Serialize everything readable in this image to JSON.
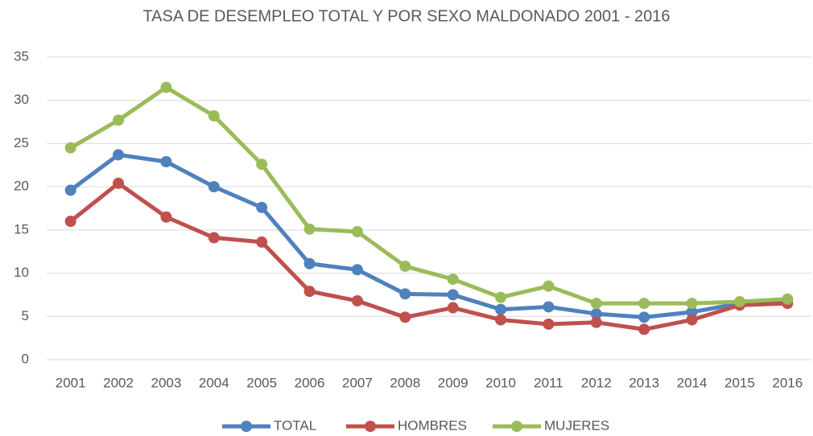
{
  "chart_data": {
    "type": "line",
    "title": "TASA DE DESEMPLEO TOTAL Y POR SEXO MALDONADO 2001 - 2016",
    "categories": [
      "2001",
      "2002",
      "2003",
      "2004",
      "2005",
      "2006",
      "2007",
      "2008",
      "2009",
      "2010",
      "2011",
      "2012",
      "2013",
      "2014",
      "2015",
      "2016"
    ],
    "series": [
      {
        "name": "TOTAL",
        "color": "#4f81bd",
        "values": [
          19.6,
          23.7,
          22.9,
          20.0,
          17.6,
          11.1,
          10.4,
          7.6,
          7.5,
          5.8,
          6.1,
          5.3,
          4.9,
          5.5,
          6.5,
          6.9
        ]
      },
      {
        "name": "HOMBRES",
        "color": "#c0504d",
        "values": [
          16.0,
          20.4,
          16.5,
          14.1,
          13.6,
          7.9,
          6.8,
          4.9,
          6.0,
          4.6,
          4.1,
          4.3,
          3.5,
          4.6,
          6.3,
          6.5
        ]
      },
      {
        "name": "MUJERES",
        "color": "#9bbb59",
        "values": [
          24.5,
          27.7,
          31.5,
          28.2,
          22.6,
          15.1,
          14.8,
          10.8,
          9.3,
          7.2,
          8.5,
          6.5,
          6.5,
          6.5,
          6.7,
          7.0
        ]
      }
    ],
    "ylim": [
      0,
      35
    ],
    "yticks": [
      0,
      5,
      10,
      15,
      20,
      25,
      30,
      35
    ],
    "grid": true,
    "legend": "bottom"
  }
}
